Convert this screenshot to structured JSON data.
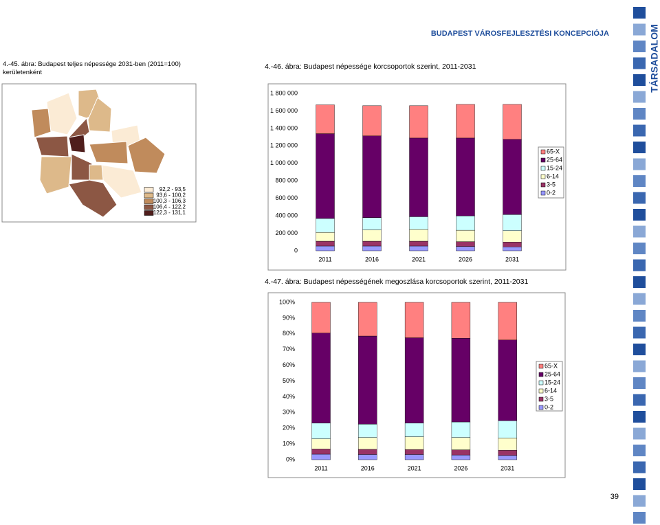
{
  "header": {
    "title": "BUDAPEST VÁROSFEJLESZTÉSI KONCEPCIÓJA",
    "section": "TÁRSADALOM",
    "page_number": "39"
  },
  "map": {
    "caption": "4.-45. ábra: Budapest teljes népessége 2031-ben (2011=100) kerületenként",
    "legend": [
      {
        "label": "92,2 -  93,5",
        "color": "#fbebd5"
      },
      {
        "label": "93,6 - 100,2",
        "color": "#ddb98a"
      },
      {
        "label": "100,3 - 106,3",
        "color": "#c08b5c"
      },
      {
        "label": "106,4 - 122,2",
        "color": "#8c5744"
      },
      {
        "label": "122,3 - 131,1",
        "color": "#4f1e1c"
      }
    ]
  },
  "chart_data": [
    {
      "type": "bar",
      "stacked": true,
      "title": "4.-46. ábra: Budapest népessége korcsoportok szerint, 2011-2031",
      "categories": [
        "2011",
        "2016",
        "2021",
        "2026",
        "2031"
      ],
      "ylim": [
        0,
        1800000
      ],
      "yticks": [
        0,
        {
          "value": 200000,
          "label": "200 000"
        },
        {
          "value": 400000,
          "label": "400 000"
        },
        {
          "value": 600000,
          "label": "600 000"
        },
        {
          "value": 800000,
          "label": "800 000"
        },
        {
          "value": 1000000,
          "label": "1 000 000"
        },
        {
          "value": 1200000,
          "label": "1 200 000"
        },
        {
          "value": 1400000,
          "label": "1 400 000"
        },
        {
          "value": 1600000,
          "label": "1 600 000"
        },
        {
          "value": 1800000,
          "label": "1 800 000"
        }
      ],
      "legend": "right",
      "series": [
        {
          "name": "0-2",
          "color": "#9999ff",
          "values": [
            55000,
            55000,
            55000,
            50000,
            45000
          ]
        },
        {
          "name": "3-5",
          "color": "#993366",
          "values": [
            55000,
            55000,
            55000,
            55000,
            55000
          ]
        },
        {
          "name": "6-14",
          "color": "#ffffcc",
          "values": [
            100000,
            130000,
            135000,
            130000,
            130000
          ]
        },
        {
          "name": "15-24",
          "color": "#ccffff",
          "values": [
            160000,
            140000,
            145000,
            165000,
            185000
          ]
        },
        {
          "name": "25-64",
          "color": "#660066",
          "values": [
            970000,
            935000,
            900000,
            890000,
            860000
          ]
        },
        {
          "name": "65-X",
          "color": "#ff8080",
          "values": [
            330000,
            345000,
            370000,
            385000,
            400000
          ]
        }
      ]
    },
    {
      "type": "bar",
      "stacked": true,
      "title": "4.-47. ábra: Budapest népességének megoszlása korcsoportok szerint, 2011-2031",
      "categories": [
        "2011",
        "2016",
        "2021",
        "2026",
        "2031"
      ],
      "ylim": [
        0,
        100
      ],
      "yticks": [
        {
          "value": 0,
          "label": "0%"
        },
        {
          "value": 10,
          "label": "10%"
        },
        {
          "value": 20,
          "label": "20%"
        },
        {
          "value": 30,
          "label": "30%"
        },
        {
          "value": 40,
          "label": "40%"
        },
        {
          "value": 50,
          "label": "50%"
        },
        {
          "value": 60,
          "label": "60%"
        },
        {
          "value": 70,
          "label": "70%"
        },
        {
          "value": 80,
          "label": "80%"
        },
        {
          "value": 90,
          "label": "90%"
        },
        {
          "value": 100,
          "label": "100%"
        }
      ],
      "legend": "right",
      "series": [
        {
          "name": "0-2",
          "color": "#9999ff",
          "values": [
            3.5,
            3.3,
            3.3,
            3.0,
            2.7
          ]
        },
        {
          "name": "3-5",
          "color": "#993366",
          "values": [
            3.3,
            3.3,
            3.2,
            3.3,
            3.3
          ]
        },
        {
          "name": "6-14",
          "color": "#ffffcc",
          "values": [
            6.5,
            7.5,
            8.1,
            7.8,
            7.8
          ]
        },
        {
          "name": "15-24",
          "color": "#ccffff",
          "values": [
            10,
            8.5,
            8.7,
            9.9,
            11
          ]
        },
        {
          "name": "25-64",
          "color": "#660066",
          "values": [
            57.2,
            56,
            54.2,
            53.2,
            51.3
          ]
        },
        {
          "name": "65-X",
          "color": "#ff8080",
          "values": [
            19.5,
            21.4,
            22.5,
            22.8,
            23.9
          ]
        }
      ]
    }
  ]
}
